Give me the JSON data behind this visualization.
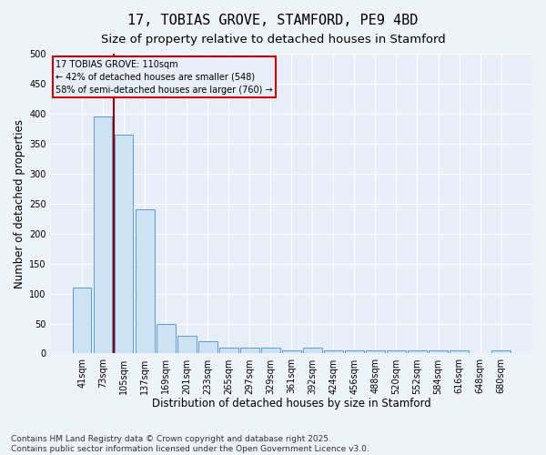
{
  "title": "17, TOBIAS GROVE, STAMFORD, PE9 4BD",
  "subtitle": "Size of property relative to detached houses in Stamford",
  "xlabel": "Distribution of detached houses by size in Stamford",
  "ylabel": "Number of detached properties",
  "footnote1": "Contains HM Land Registry data © Crown copyright and database right 2025.",
  "footnote2": "Contains public sector information licensed under the Open Government Licence v3.0.",
  "categories": [
    "41sqm",
    "73sqm",
    "105sqm",
    "137sqm",
    "169sqm",
    "201sqm",
    "233sqm",
    "265sqm",
    "297sqm",
    "329sqm",
    "361sqm",
    "392sqm",
    "424sqm",
    "456sqm",
    "488sqm",
    "520sqm",
    "552sqm",
    "584sqm",
    "616sqm",
    "648sqm",
    "680sqm"
  ],
  "values": [
    110,
    395,
    365,
    240,
    50,
    30,
    20,
    10,
    10,
    10,
    5,
    10,
    5,
    5,
    5,
    5,
    5,
    5,
    5,
    0,
    5
  ],
  "bar_color": "#cfe2f3",
  "bar_edge_color": "#5b9bd5",
  "vline_x": 1.5,
  "vline_color": "#8b0000",
  "annotation_line1": "17 TOBIAS GROVE: 110sqm",
  "annotation_line2": "← 42% of detached houses are smaller (548)",
  "annotation_line3": "58% of semi-detached houses are larger (760) →",
  "annotation_box_color": "#cc0000",
  "ylim": [
    0,
    500
  ],
  "yticks": [
    0,
    50,
    100,
    150,
    200,
    250,
    300,
    350,
    400,
    450,
    500
  ],
  "background_color": "#eef2f9",
  "plot_bg_color": "#e8eef8",
  "grid_color": "#ffffff",
  "title_fontsize": 11,
  "subtitle_fontsize": 9.5,
  "axis_label_fontsize": 8.5,
  "tick_fontsize": 7,
  "footnote_fontsize": 6.5
}
